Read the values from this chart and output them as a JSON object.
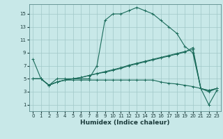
{
  "xlabel": "Humidex (Indice chaleur)",
  "bg_color": "#c8e8e8",
  "grid_color": "#a0c8c8",
  "line_color": "#1a6b5a",
  "xlim": [
    -0.5,
    23.5
  ],
  "ylim": [
    0,
    16.5
  ],
  "xticks": [
    0,
    1,
    2,
    3,
    4,
    5,
    6,
    7,
    8,
    9,
    10,
    11,
    12,
    13,
    14,
    15,
    16,
    17,
    18,
    19,
    20,
    21,
    22,
    23
  ],
  "yticks": [
    1,
    3,
    5,
    7,
    9,
    11,
    13,
    15
  ],
  "line1_x": [
    0,
    1,
    2,
    3,
    4,
    5,
    6,
    7,
    8,
    9,
    10,
    11,
    12,
    13,
    14,
    15,
    16,
    17,
    18,
    19,
    20,
    21,
    22,
    23
  ],
  "line1_y": [
    8,
    5,
    4,
    5,
    5,
    5,
    5,
    5,
    7,
    14,
    15,
    15,
    15.5,
    16,
    15.5,
    15,
    14,
    13,
    12,
    10,
    9,
    3.5,
    3,
    3.5
  ],
  "line2_x": [
    0,
    1,
    2,
    3,
    4,
    5,
    6,
    7,
    8,
    9,
    10,
    11,
    12,
    13,
    14,
    15,
    16,
    17,
    18,
    19,
    20,
    21,
    22,
    23
  ],
  "line2_y": [
    5,
    5,
    4,
    4.5,
    4.8,
    5,
    5.2,
    5.5,
    5.8,
    6,
    6.3,
    6.6,
    7,
    7.3,
    7.6,
    7.9,
    8.2,
    8.5,
    8.8,
    9.1,
    9.8,
    3.5,
    1,
    3.2
  ],
  "line3_x": [
    0,
    1,
    2,
    3,
    4,
    5,
    6,
    7,
    8,
    9,
    10,
    11,
    12,
    13,
    14,
    15,
    16,
    17,
    18,
    19,
    20,
    21,
    22,
    23
  ],
  "line3_y": [
    5,
    5,
    4,
    4.5,
    4.8,
    5,
    5.2,
    5.5,
    5.8,
    6.1,
    6.4,
    6.7,
    7.1,
    7.4,
    7.7,
    8.0,
    8.3,
    8.6,
    8.9,
    9.2,
    9.5,
    3.5,
    3.2,
    3.5
  ],
  "line4_x": [
    0,
    1,
    2,
    3,
    4,
    5,
    6,
    7,
    8,
    9,
    10,
    11,
    12,
    13,
    14,
    15,
    16,
    17,
    18,
    19,
    20,
    21,
    22,
    23
  ],
  "line4_y": [
    5,
    5,
    4,
    4.5,
    4.8,
    4.8,
    4.8,
    4.8,
    4.8,
    4.8,
    4.8,
    4.8,
    4.8,
    4.8,
    4.8,
    4.8,
    4.5,
    4.3,
    4.2,
    4.0,
    3.8,
    3.5,
    3.2,
    3.5
  ]
}
